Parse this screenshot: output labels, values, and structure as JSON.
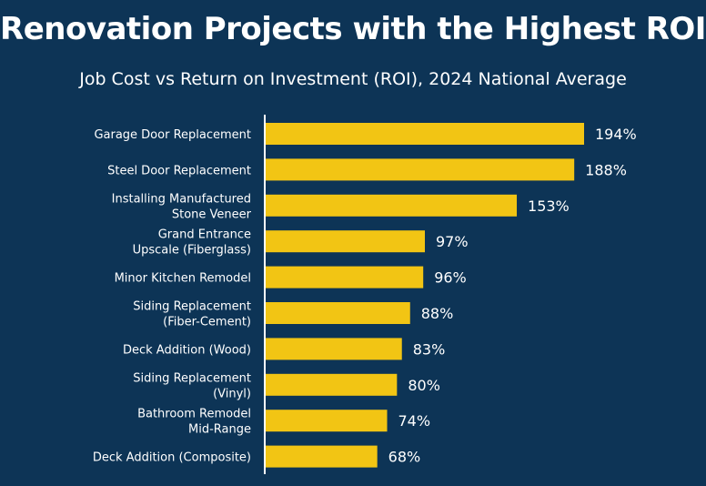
{
  "chart_data": {
    "type": "bar",
    "orientation": "horizontal",
    "title": "Renovation Projects with the Highest ROI",
    "subtitle": "Job Cost vs Return on Investment (ROI), 2024 National Average",
    "categories": [
      [
        "Garage Door Replacement"
      ],
      [
        "Steel Door Replacement"
      ],
      [
        "Installing Manufactured",
        "Stone Veneer"
      ],
      [
        "Grand Entrance",
        "Upscale (Fiberglass)"
      ],
      [
        "Minor Kitchen Remodel"
      ],
      [
        "Siding Replacement",
        "(Fiber-Cement)"
      ],
      [
        "Deck Addition (Wood)"
      ],
      [
        "Siding Replacement",
        "(Vinyl)"
      ],
      [
        "Bathroom Remodel",
        "Mid-Range"
      ],
      [
        "Deck Addition (Composite)"
      ]
    ],
    "values": [
      194,
      188,
      153,
      97,
      96,
      88,
      83,
      80,
      74,
      68
    ],
    "value_labels": [
      "194%",
      "188%",
      "153%",
      "97%",
      "96%",
      "88%",
      "83%",
      "80%",
      "74%",
      "68%"
    ],
    "value_suffix": "%",
    "xlim": [
      0,
      194
    ],
    "grid": false,
    "bar_color": "#f2c514",
    "background_color": "#0d3456",
    "text_color": "#ffffff"
  }
}
